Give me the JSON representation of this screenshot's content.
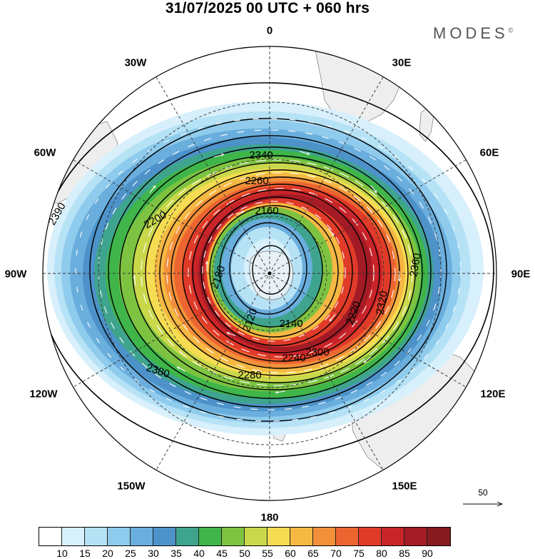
{
  "title": "31/07/2025  00 UTC  + 060 hrs",
  "brand": "MODES",
  "brand_mark": "©",
  "longitude_labels": [
    "0",
    "30E",
    "60E",
    "90E",
    "120E",
    "150E",
    "180",
    "150W",
    "120W",
    "90W",
    "60W",
    "30W"
  ],
  "contour_labels": [
    "2120",
    "2140",
    "2160",
    "2180",
    "2200",
    "2220",
    "2240",
    "2260",
    "2280",
    "2300",
    "2320",
    "2340",
    "2360",
    "2380",
    "2390"
  ],
  "colorbar": {
    "ticks": [
      "10",
      "15",
      "20",
      "25",
      "30",
      "35",
      "40",
      "45",
      "50",
      "55",
      "60",
      "65",
      "70",
      "75",
      "80",
      "85",
      "90"
    ],
    "colors": [
      "#ffffff",
      "#d8f0fb",
      "#b6e2f6",
      "#8fcbec",
      "#6aaedd",
      "#4d92c9",
      "#3fa48e",
      "#3fb54a",
      "#7dc341",
      "#c9d84a",
      "#f6dc52",
      "#f5b843",
      "#f2903a",
      "#ec6530",
      "#e03b29",
      "#c8242a",
      "#a31b25",
      "#861a1f"
    ]
  },
  "reference_vector": "50"
}
